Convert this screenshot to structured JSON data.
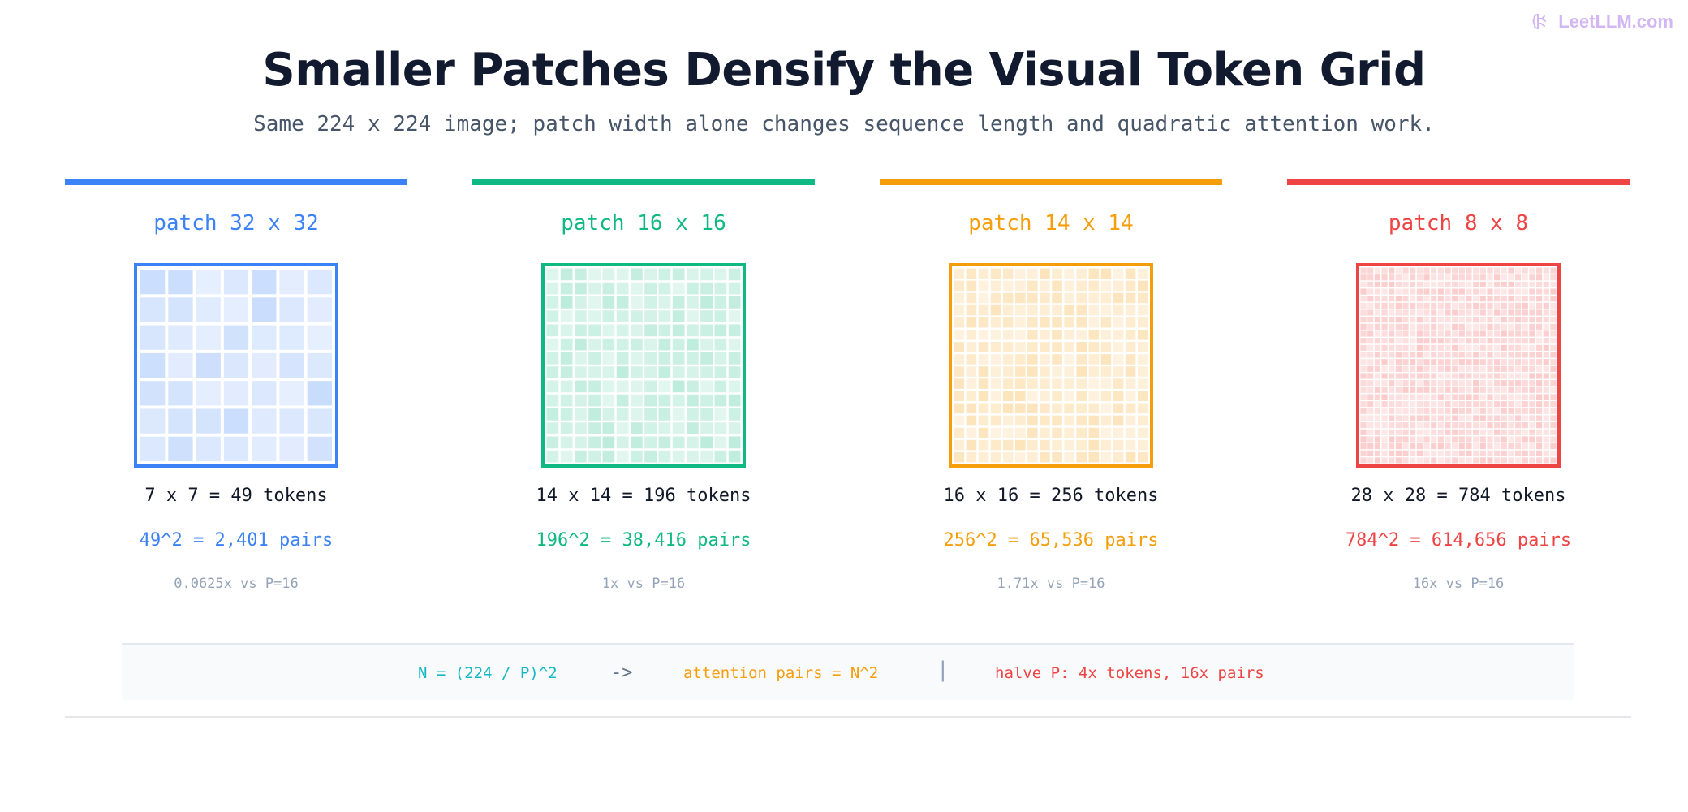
{
  "brand": {
    "text": "LeetLLM.com",
    "icon": "brain-icon",
    "color": "#d3b7f2"
  },
  "title": "Smaller Patches Densify the Visual Token Grid",
  "subtitle": "Same 224 x 224 image; patch width alone changes sequence length and quadratic attention work.",
  "panels": [
    {
      "label": "patch 32 x 32",
      "grid": 7,
      "tokens": "7 x 7 = 49 tokens",
      "pairs": "49^2 = 2,401 pairs",
      "ratio": "0.0625x vs P=16",
      "color": "#3b82f6"
    },
    {
      "label": "patch 16 x 16",
      "grid": 14,
      "tokens": "14 x 14 = 196 tokens",
      "pairs": "196^2 = 38,416 pairs",
      "ratio": "1x vs P=16",
      "color": "#10b981"
    },
    {
      "label": "patch 14 x 14",
      "grid": 16,
      "tokens": "16 x 16 = 256 tokens",
      "pairs": "256^2 = 65,536 pairs",
      "ratio": "1.71x vs P=16",
      "color": "#f59e0b"
    },
    {
      "label": "patch 8 x 8",
      "grid": 28,
      "tokens": "28 x 28 = 784 tokens",
      "pairs": "784^2 = 614,656 pairs",
      "ratio": "16x vs P=16",
      "color": "#ef4444"
    }
  ],
  "formula": {
    "n": "N = (224 / P)^2",
    "arrow": "->",
    "attention": "attention pairs = N^2",
    "separator": "|",
    "halve": "halve P: 4x tokens, 16x pairs"
  }
}
